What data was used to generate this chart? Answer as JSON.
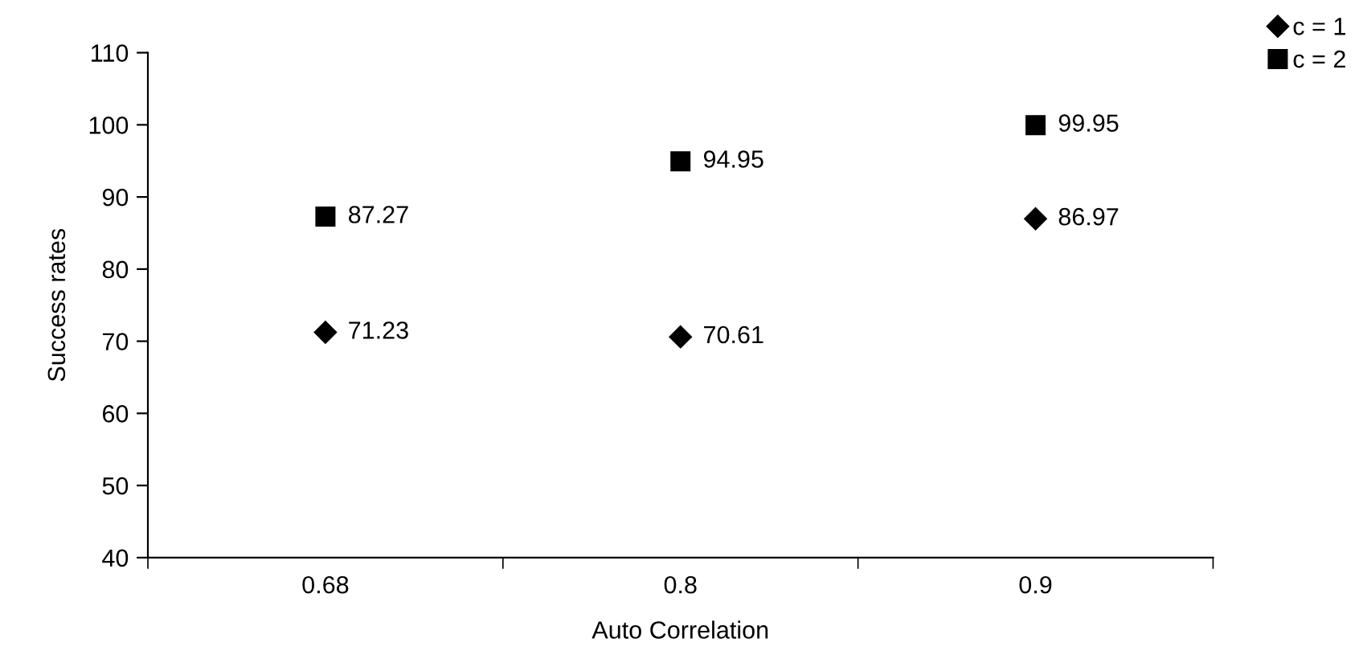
{
  "chart_data": {
    "type": "scatter",
    "xlabel": "Auto Correlation",
    "ylabel": "Success rates",
    "categories": [
      "0.68",
      "0.8",
      "0.9"
    ],
    "series": [
      {
        "name": "c = 1",
        "color": "#000000",
        "marker": "diamond",
        "values": [
          71.23,
          70.61,
          86.97
        ]
      },
      {
        "name": "c = 2",
        "color": "#000000",
        "marker": "square",
        "values": [
          87.27,
          94.95,
          99.95
        ]
      }
    ],
    "ylim": [
      40,
      110
    ],
    "yticks": [
      40,
      50,
      60,
      70,
      80,
      90,
      100,
      110
    ],
    "data_labels": true,
    "grid": false,
    "legend": "top right"
  }
}
